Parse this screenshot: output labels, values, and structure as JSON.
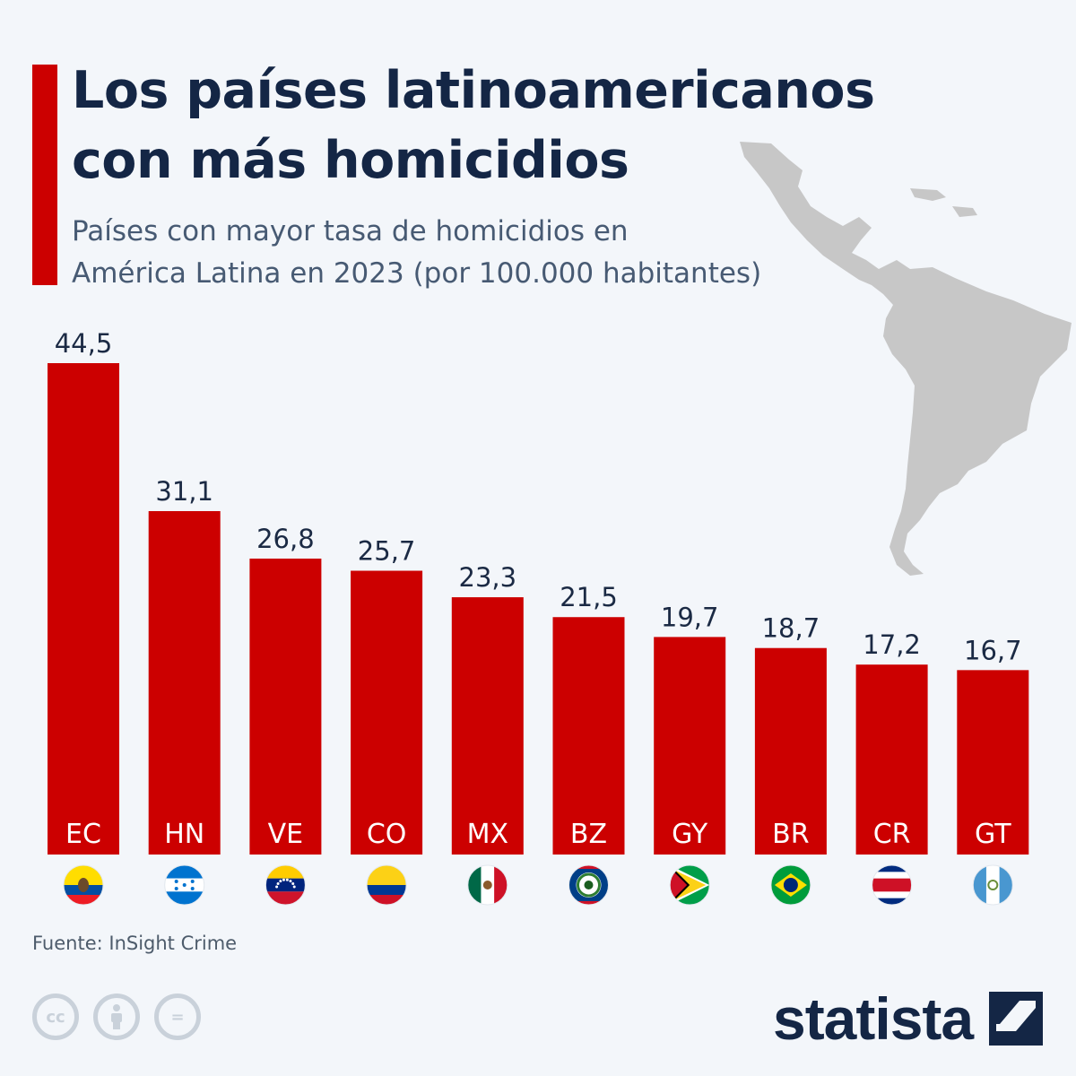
{
  "header": {
    "title_line1": "Los países latinoamericanos",
    "title_line2": "con más homicidios",
    "subtitle_line1": "Países con mayor tasa de homicidios en",
    "subtitle_line2": "América Latina en 2023 (por 100.000 habitantes)"
  },
  "colors": {
    "accent": "#cc0000",
    "title": "#142645",
    "subtitle": "#475a73",
    "background": "#f3f6fa",
    "map": "#c7c7c7"
  },
  "chart_data": {
    "type": "bar",
    "title": "Los países latinoamericanos con más homicidios",
    "subtitle": "Países con mayor tasa de homicidios en América Latina en 2023 (por 100.000 habitantes)",
    "categories": [
      "EC",
      "HN",
      "VE",
      "CO",
      "MX",
      "BZ",
      "GY",
      "BR",
      "CR",
      "GT"
    ],
    "values": [
      44.5,
      31.1,
      26.8,
      25.7,
      23.3,
      21.5,
      19.7,
      18.7,
      17.2,
      16.7
    ],
    "value_labels": [
      "44,5",
      "31,1",
      "26,8",
      "25,7",
      "23,3",
      "21,5",
      "19,7",
      "18,7",
      "17,2",
      "16,7"
    ],
    "flags": [
      "ecuador-flag",
      "honduras-flag",
      "venezuela-flag",
      "colombia-flag",
      "mexico-flag",
      "belize-flag",
      "guyana-flag",
      "brazil-flag",
      "costa-rica-flag",
      "guatemala-flag"
    ],
    "ylim": [
      0,
      44.5
    ],
    "grid": false,
    "xlabel": "",
    "ylabel": ""
  },
  "footer": {
    "source": "Fuente: InSight Crime",
    "brand": "statista",
    "license_icons": [
      "cc-icon",
      "by-icon",
      "nd-icon"
    ],
    "cc_text": "cc",
    "nd_text": "="
  }
}
